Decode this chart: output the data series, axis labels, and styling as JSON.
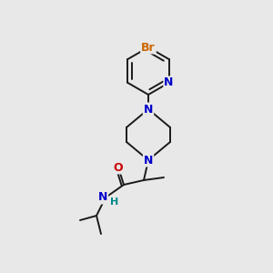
{
  "background_color": "#e8e8e8",
  "bond_color": "#1a1a1a",
  "atom_colors": {
    "Br": "#cc6600",
    "N": "#0000cc",
    "O": "#cc0000",
    "H": "#008888",
    "C": "#1a1a1a"
  },
  "font_size_atoms": 9,
  "font_size_h": 8,
  "figsize": [
    3.0,
    3.0
  ],
  "dpi": 100
}
